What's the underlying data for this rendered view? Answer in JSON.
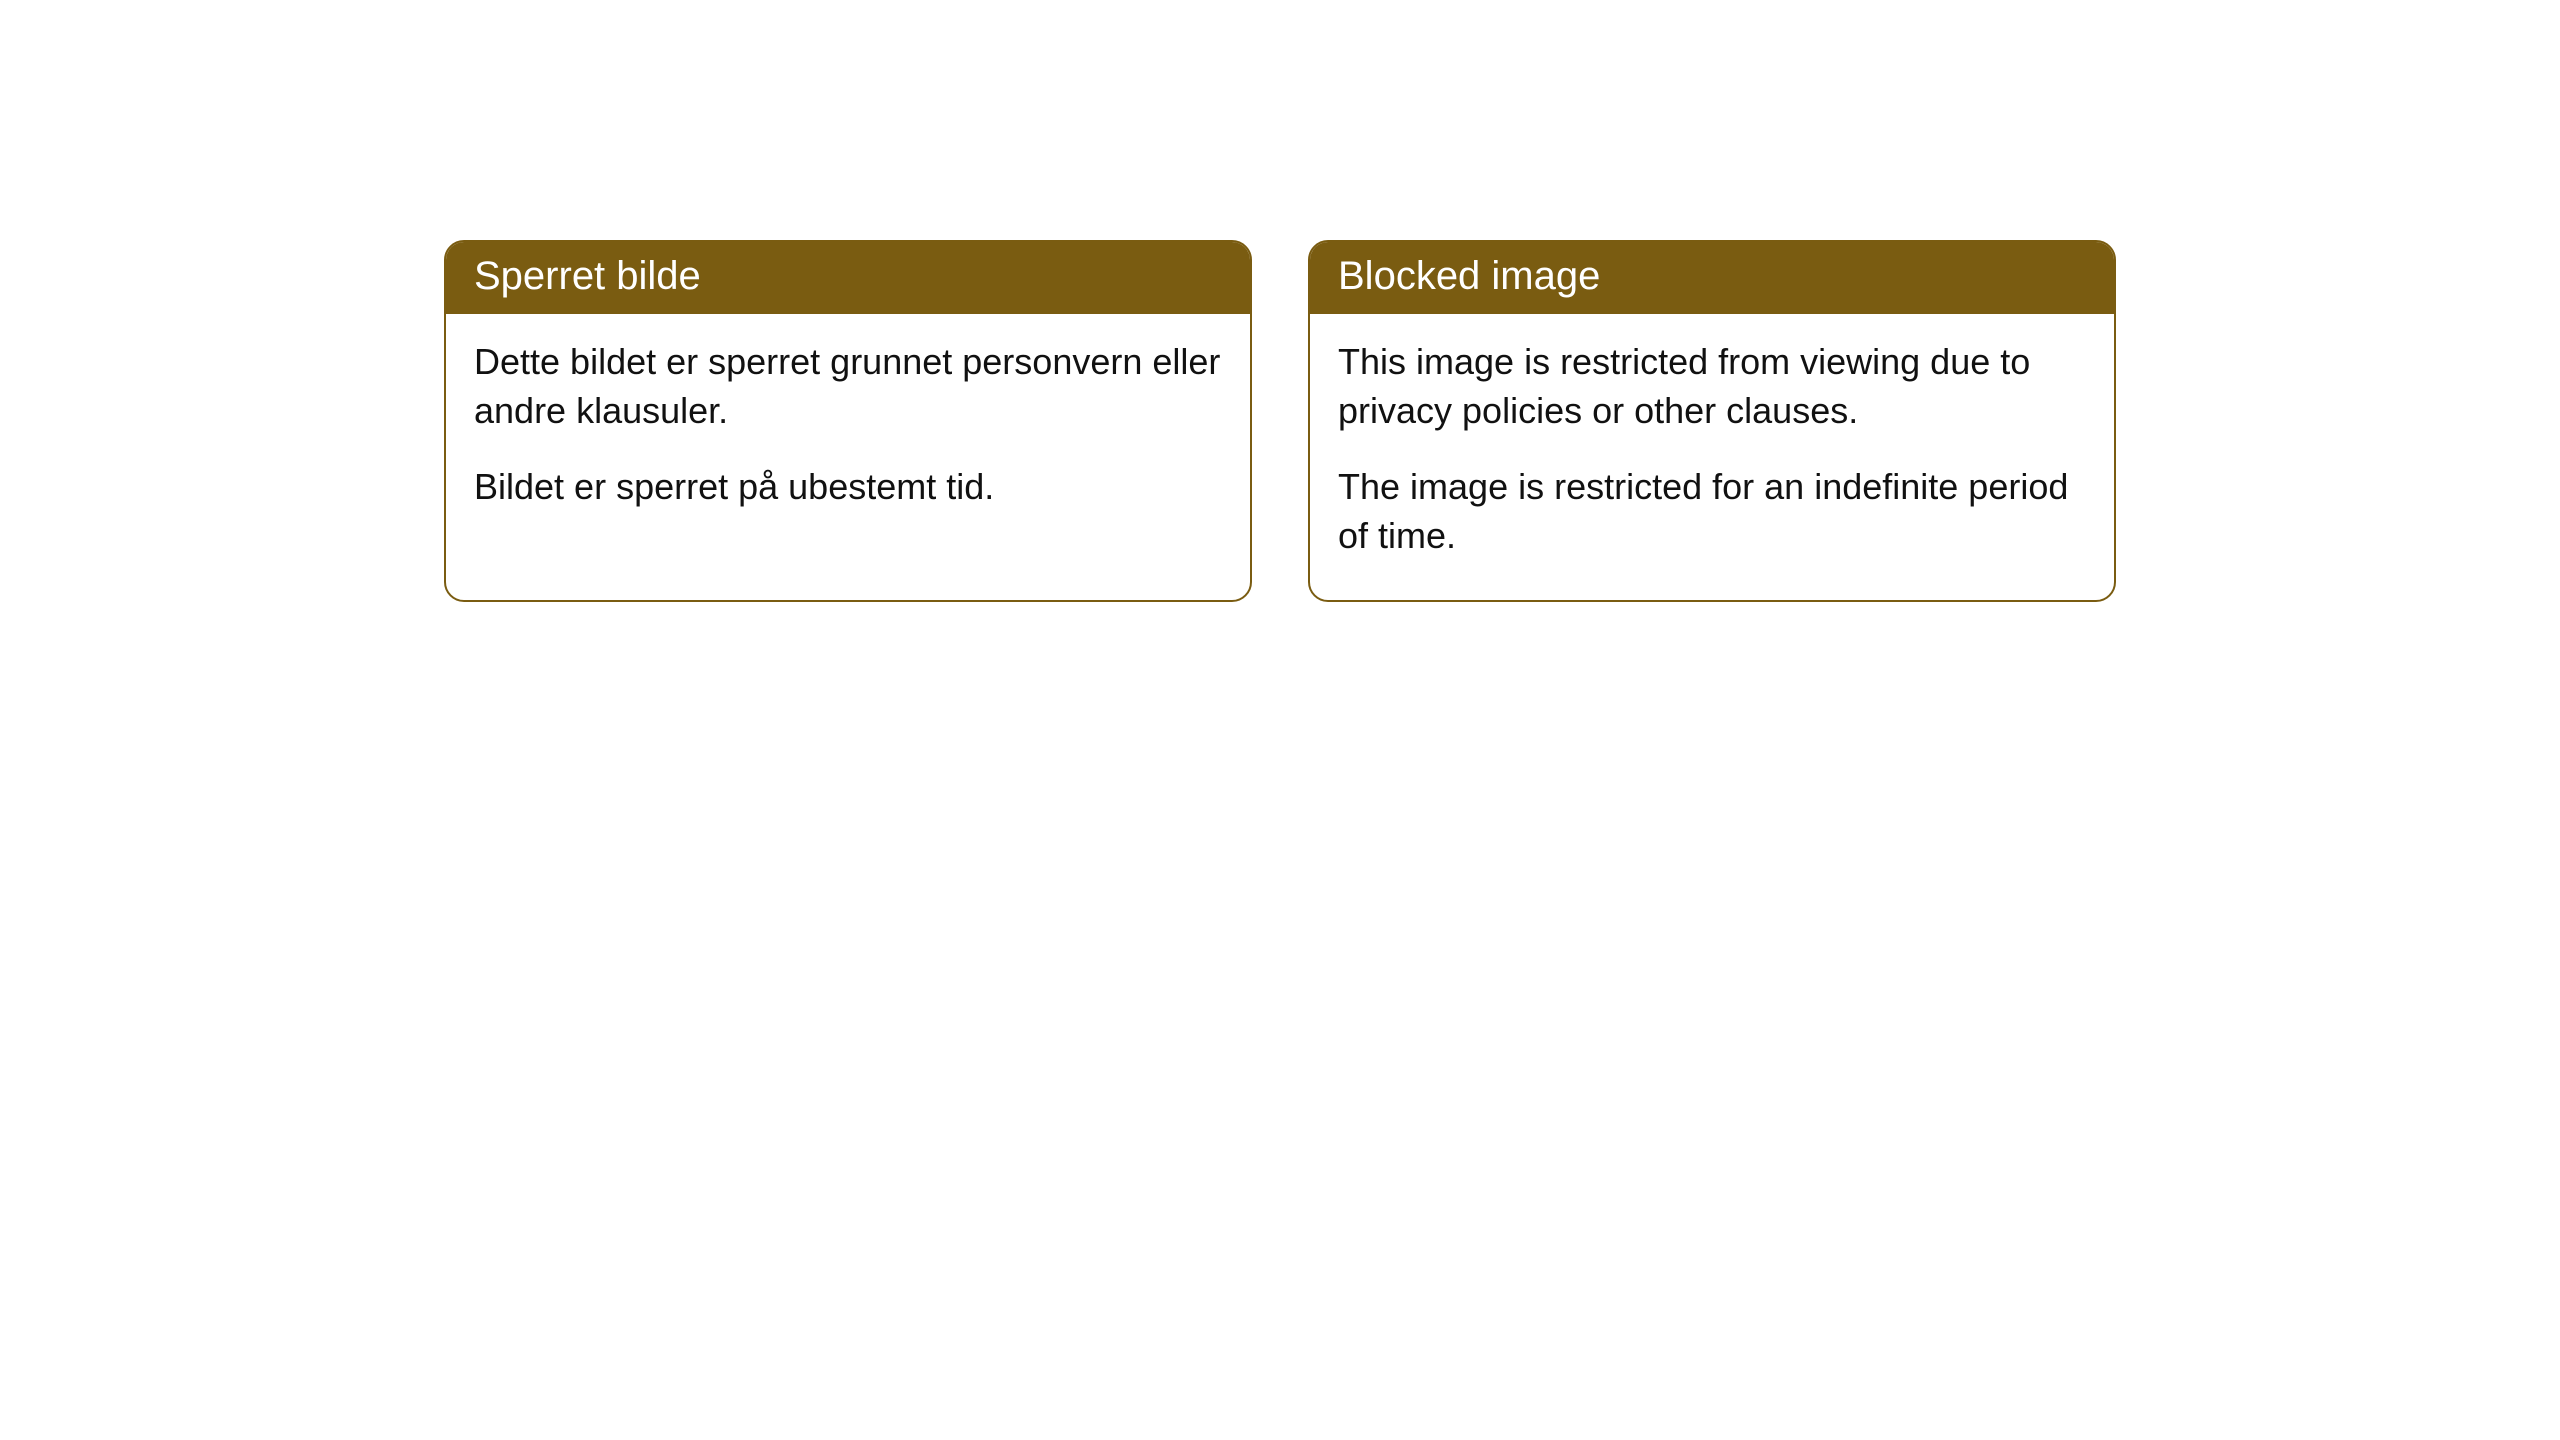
{
  "cards": [
    {
      "title": "Sperret bilde",
      "paragraph1": "Dette bildet er sperret grunnet personvern eller andre klausuler.",
      "paragraph2": "Bildet er sperret på ubestemt tid."
    },
    {
      "title": "Blocked image",
      "paragraph1": "This image is restricted from viewing due to privacy policies or other clauses.",
      "paragraph2": "The image is restricted for an indefinite period of time."
    }
  ],
  "style": {
    "header_bg": "#7a5c11",
    "header_text": "#ffffff",
    "body_text": "#111111",
    "border_color": "#7a5c11",
    "background": "#ffffff",
    "border_radius": 20,
    "header_fontsize": 40,
    "body_fontsize": 36
  }
}
